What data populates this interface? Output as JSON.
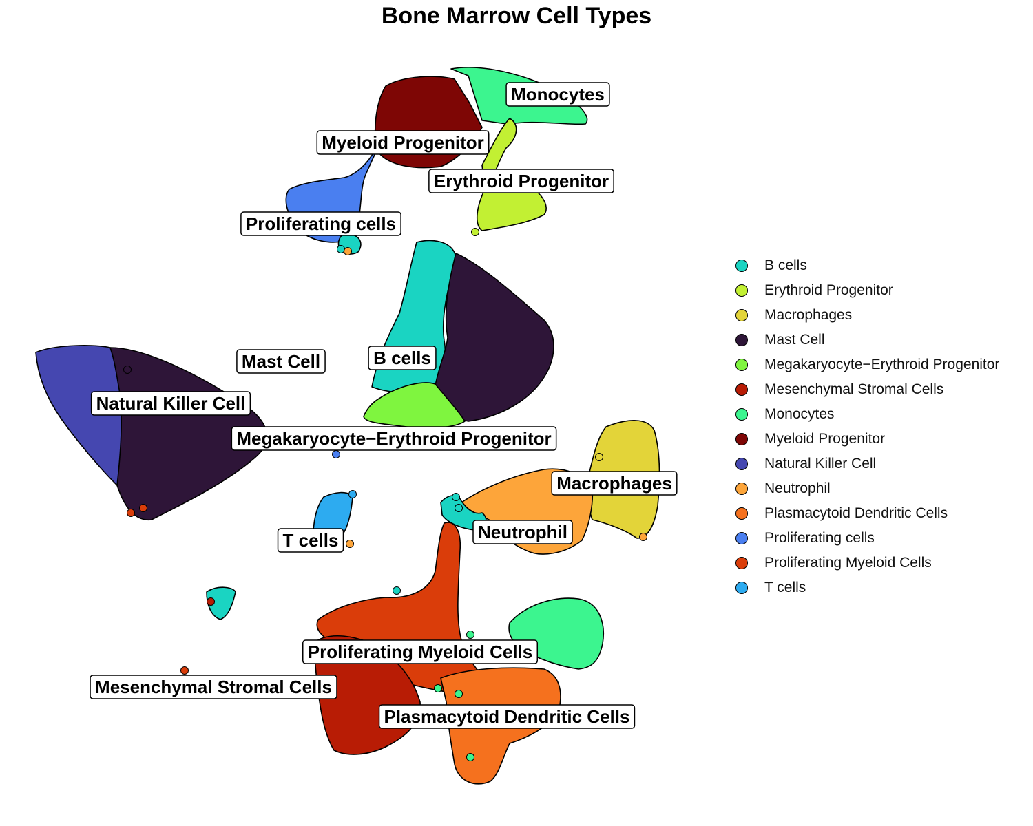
{
  "chart_data": {
    "type": "scatter",
    "title": "Bone Marrow Cell Types",
    "xlabel": "",
    "ylabel": "",
    "grid": false,
    "axes": false,
    "legend_position": "right",
    "series": [
      {
        "name": "B cells",
        "color": "#1AD4C2"
      },
      {
        "name": "Erythroid Progenitor",
        "color": "#C2F033"
      },
      {
        "name": "Macrophages",
        "color": "#E3D439"
      },
      {
        "name": "Mast Cell",
        "color": "#2E1538"
      },
      {
        "name": "Megakaryocyte−Erythroid Progenitor",
        "color": "#7FF53F"
      },
      {
        "name": "Mesenchymal Stromal Cells",
        "color": "#B81C05"
      },
      {
        "name": "Monocytes",
        "color": "#3CF58F"
      },
      {
        "name": "Myeloid Progenitor",
        "color": "#7E0605"
      },
      {
        "name": "Natural Killer Cell",
        "color": "#4547B0"
      },
      {
        "name": "Neutrophil",
        "color": "#FDA53A"
      },
      {
        "name": "Plasmacytoid Dendritic Cells",
        "color": "#F5711E"
      },
      {
        "name": "Proliferating cells",
        "color": "#4A7FF0"
      },
      {
        "name": "Proliferating Myeloid Cells",
        "color": "#DA3D0A"
      },
      {
        "name": "T cells",
        "color": "#2DABF0"
      }
    ],
    "cluster_labels": [
      "Monocytes",
      "Myeloid Progenitor",
      "Erythroid Progenitor",
      "Proliferating cells",
      "Mast Cell",
      "B cells",
      "Natural Killer Cell",
      "Megakaryocyte−Erythroid Progenitor",
      "Macrophages",
      "T cells",
      "Neutrophil",
      "Proliferating Myeloid Cells",
      "Mesenchymal Stromal Cells",
      "Plasmacytoid Dendritic Cells"
    ]
  }
}
